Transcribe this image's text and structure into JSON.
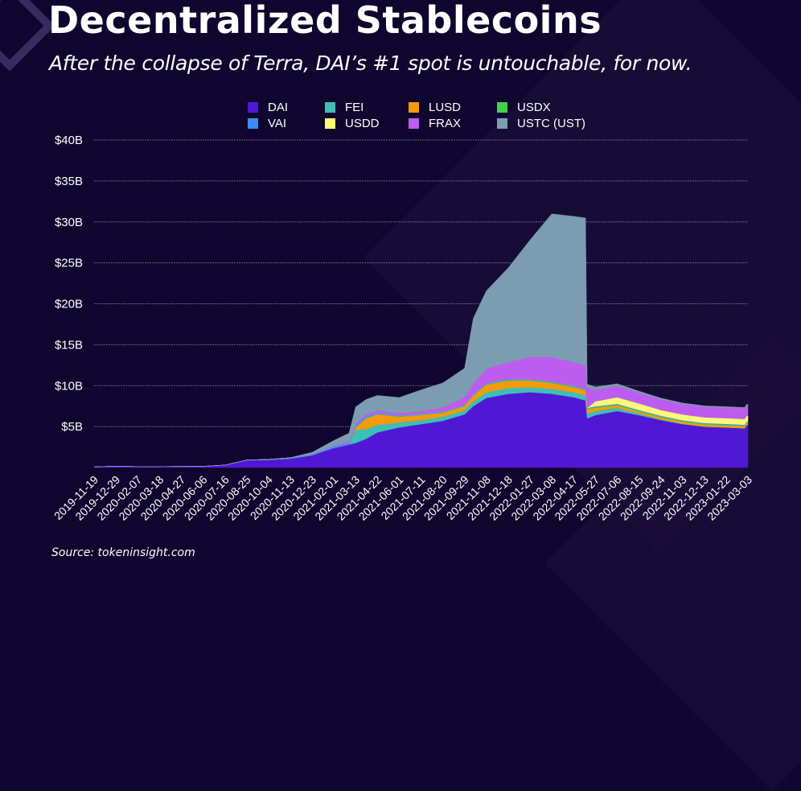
{
  "title": "Decentralized Stablecoins",
  "subtitle": "After the collapse of Terra, DAI’s #1 spot is untouchable, for now.",
  "source": "Source: tokeninsight.com",
  "chart_data": {
    "type": "area",
    "stacked": true,
    "title": "Decentralized Stablecoins",
    "subtitle": "After the collapse of Terra, DAI’s #1 spot is untouchable, for now.",
    "xlabel": "",
    "ylabel": "",
    "ylim": [
      0,
      40
    ],
    "y_unit": "$B",
    "yticks": [
      5,
      10,
      15,
      20,
      25,
      30,
      35,
      40
    ],
    "ytick_labels": [
      "$5B",
      "$10B",
      "$15B",
      "$20B",
      "$25B",
      "$30B",
      "$35B",
      "$40B"
    ],
    "grid": true,
    "legend_position": "top-center",
    "xtick_labels": [
      "2019-11-19",
      "2019-12-29",
      "2020-02-07",
      "2020-03-18",
      "2020-04-27",
      "2020-06-06",
      "2020-07-16",
      "2020-08-25",
      "2020-10-04",
      "2020-11-13",
      "2020-12-23",
      "2021-02-01",
      "2021-03-13",
      "2021-04-22",
      "2021-06-01",
      "2021-07-11",
      "2021-08-20",
      "2021-09-29",
      "2021-11-08",
      "2021-12-18",
      "2022-01-27",
      "2022-03-08",
      "2022-04-17",
      "2022-05-27",
      "2022-07-06",
      "2022-08-15",
      "2022-09-24",
      "2022-11-03",
      "2022-12-13",
      "2023-01-22",
      "2023-03-03"
    ],
    "x": [
      "2019-11-19",
      "2019-12-29",
      "2020-02-07",
      "2020-03-18",
      "2020-04-27",
      "2020-06-06",
      "2020-07-16",
      "2020-08-25",
      "2020-10-04",
      "2020-11-13",
      "2020-12-23",
      "2021-02-01",
      "2021-03-01",
      "2021-03-13",
      "2021-04-01",
      "2021-04-22",
      "2021-06-01",
      "2021-07-11",
      "2021-08-20",
      "2021-09-29",
      "2021-10-15",
      "2021-11-08",
      "2021-12-18",
      "2022-01-27",
      "2022-03-08",
      "2022-04-17",
      "2022-05-09",
      "2022-05-12",
      "2022-05-27",
      "2022-07-06",
      "2022-08-15",
      "2022-09-24",
      "2022-11-03",
      "2022-12-13",
      "2023-01-22",
      "2023-02-25",
      "2023-03-01",
      "2023-03-03"
    ],
    "series": [
      {
        "name": "DAI",
        "color": "#5018d4",
        "values": [
          0.1,
          0.15,
          0.12,
          0.12,
          0.13,
          0.15,
          0.3,
          0.9,
          0.95,
          1.1,
          1.5,
          2.4,
          2.8,
          3.0,
          3.5,
          4.3,
          4.9,
          5.3,
          5.7,
          6.5,
          7.5,
          8.5,
          9.0,
          9.2,
          9.0,
          8.6,
          8.2,
          6.0,
          6.4,
          6.9,
          6.4,
          5.8,
          5.3,
          5.0,
          4.9,
          4.8,
          5.2,
          5.2
        ]
      },
      {
        "name": "FEI",
        "color": "#3dbfb8",
        "values": [
          0,
          0,
          0,
          0,
          0,
          0,
          0,
          0,
          0,
          0,
          0,
          0,
          0,
          1.6,
          1.2,
          0.9,
          0.6,
          0.5,
          0.5,
          0.5,
          0.6,
          0.7,
          0.7,
          0.6,
          0.6,
          0.6,
          0.6,
          0.6,
          0.5,
          0.4,
          0.2,
          0.1,
          0.05,
          0.0,
          0.0,
          0.0,
          0.0,
          0.0
        ]
      },
      {
        "name": "LUSD",
        "color": "#f59a0a",
        "values": [
          0,
          0,
          0,
          0,
          0,
          0,
          0,
          0,
          0,
          0,
          0,
          0,
          0,
          0.3,
          1.3,
          1.3,
          0.7,
          0.6,
          0.5,
          0.5,
          0.7,
          0.9,
          0.9,
          0.8,
          0.7,
          0.6,
          0.6,
          0.5,
          0.4,
          0.3,
          0.25,
          0.25,
          0.25,
          0.25,
          0.25,
          0.25,
          0.25,
          0.25
        ]
      },
      {
        "name": "USDX",
        "color": "#44d04c",
        "values": [
          0,
          0,
          0,
          0,
          0,
          0,
          0,
          0,
          0,
          0,
          0,
          0,
          0,
          0.05,
          0.05,
          0.05,
          0.05,
          0.05,
          0.05,
          0.05,
          0.05,
          0.1,
          0.1,
          0.1,
          0.1,
          0.1,
          0.1,
          0.1,
          0.1,
          0.1,
          0.1,
          0.1,
          0.1,
          0.1,
          0.1,
          0.1,
          0.1,
          0.1
        ]
      },
      {
        "name": "VAI",
        "color": "#3a8cf8",
        "values": [
          0,
          0,
          0,
          0,
          0,
          0,
          0,
          0.02,
          0.05,
          0.1,
          0.15,
          0.2,
          0.25,
          0.25,
          0.2,
          0.15,
          0.1,
          0.08,
          0.08,
          0.08,
          0.08,
          0.08,
          0.08,
          0.08,
          0.08,
          0.08,
          0.08,
          0.08,
          0.08,
          0.08,
          0.08,
          0.08,
          0.08,
          0.08,
          0.08,
          0.08,
          0.08,
          0.08
        ]
      },
      {
        "name": "USDD",
        "color": "#fbfb78",
        "values": [
          0,
          0,
          0,
          0,
          0,
          0,
          0,
          0,
          0,
          0,
          0,
          0,
          0,
          0,
          0,
          0,
          0,
          0,
          0,
          0,
          0,
          0,
          0,
          0,
          0,
          0,
          0,
          0,
          0.6,
          0.8,
          0.8,
          0.7,
          0.7,
          0.7,
          0.7,
          0.7,
          0.7,
          0.7
        ]
      },
      {
        "name": "FRAX",
        "color": "#bc5df0",
        "values": [
          0,
          0,
          0,
          0,
          0,
          0,
          0,
          0,
          0,
          0,
          0.05,
          0.1,
          0.15,
          0.2,
          0.25,
          0.3,
          0.3,
          0.35,
          0.5,
          1.0,
          1.3,
          1.8,
          2.1,
          2.7,
          3.0,
          2.9,
          2.9,
          2.5,
          1.4,
          1.4,
          1.3,
          1.3,
          1.3,
          1.3,
          1.3,
          1.3,
          1.3,
          1.3
        ]
      },
      {
        "name": "USTC (UST)",
        "color": "#7c9cb1",
        "values": [
          0,
          0,
          0,
          0,
          0,
          0,
          0,
          0,
          0,
          0,
          0.15,
          0.6,
          1.0,
          2.0,
          1.8,
          1.8,
          1.9,
          2.6,
          3.0,
          3.5,
          8.0,
          9.5,
          11.5,
          14.3,
          17.5,
          17.8,
          18.0,
          0.4,
          0.35,
          0.25,
          0.2,
          0.15,
          0.1,
          0.1,
          0.1,
          0.1,
          0.1,
          0.05
        ]
      }
    ]
  },
  "legend": [
    {
      "label": "DAI",
      "color": "#5018d4"
    },
    {
      "label": "FEI",
      "color": "#3dbfb8"
    },
    {
      "label": "LUSD",
      "color": "#f59a0a"
    },
    {
      "label": "USDX",
      "color": "#44d04c"
    },
    {
      "label": "VAI",
      "color": "#3a8cf8"
    },
    {
      "label": "USDD",
      "color": "#fbfb78"
    },
    {
      "label": "FRAX",
      "color": "#bc5df0"
    },
    {
      "label": "USTC (UST)",
      "color": "#7c9cb1"
    }
  ]
}
